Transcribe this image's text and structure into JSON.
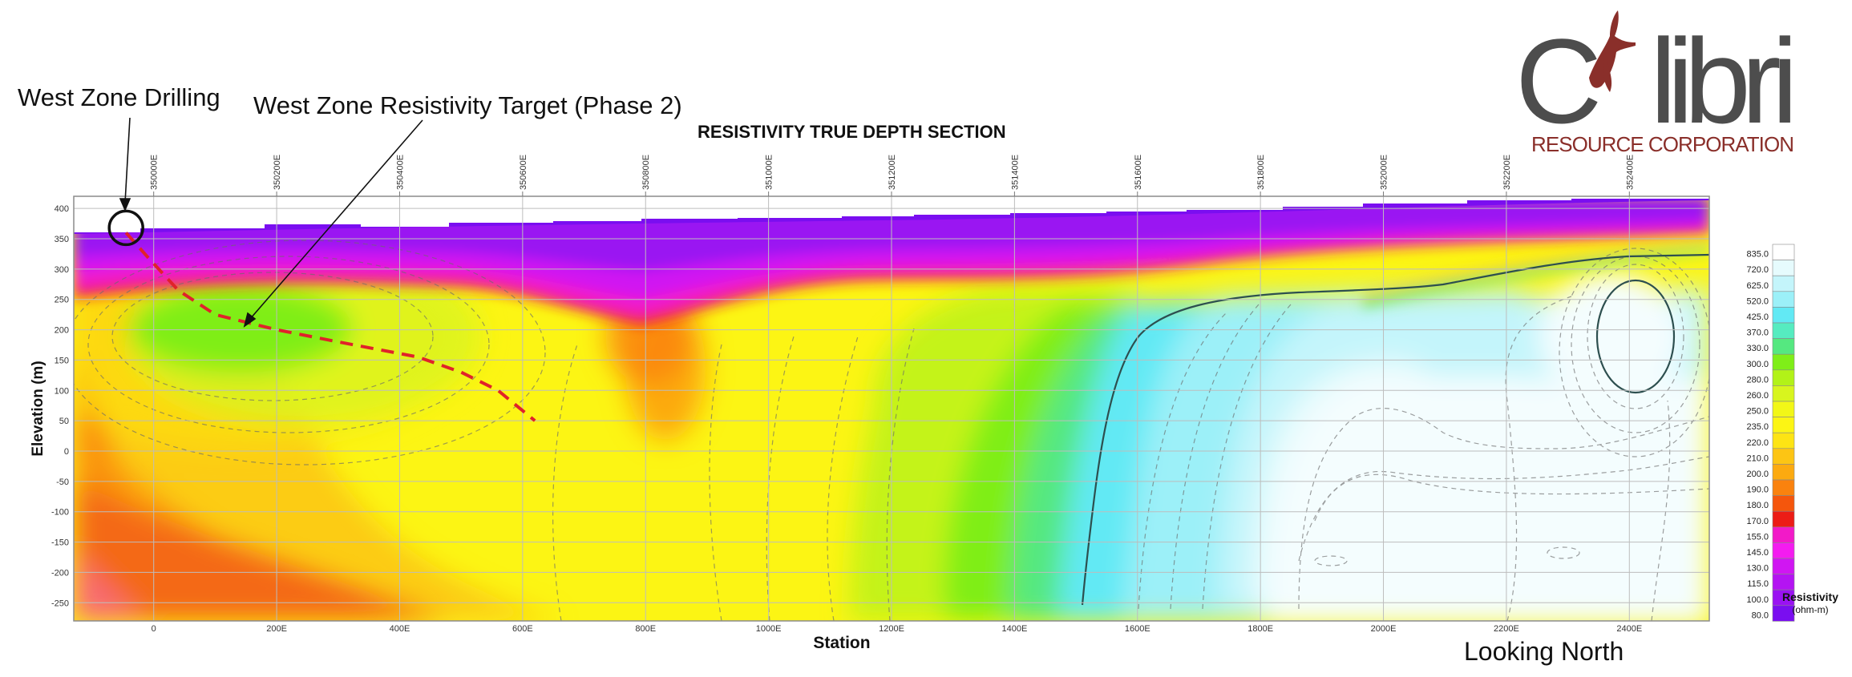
{
  "annotations": {
    "drilling": "West Zone Drilling",
    "target": "West Zone Resistivity Target (Phase 2)",
    "looking": "Looking North"
  },
  "logo": {
    "name": "Colibri",
    "tagline": "RESOURCE CORPORATION",
    "colors": {
      "text": "#4d4d4d",
      "accent": "#8a2f2a"
    }
  },
  "chart_data": {
    "type": "heatmap",
    "title": "RESISTIVITY TRUE DEPTH SECTION",
    "xlabel": "Station",
    "ylabel": "Elevation (m)",
    "xlim": [
      -130,
      2530
    ],
    "ylim": [
      -280,
      420
    ],
    "x_ticks": [
      "0",
      "200E",
      "400E",
      "600E",
      "800E",
      "1000E",
      "1200E",
      "1400E",
      "1600E",
      "1800E",
      "2000E",
      "2200E",
      "2400E"
    ],
    "x_tick_values": [
      0,
      200,
      400,
      600,
      800,
      1000,
      1200,
      1400,
      1600,
      1800,
      2000,
      2200,
      2400
    ],
    "top_ticks": [
      "350000E",
      "350200E",
      "350400E",
      "350600E",
      "350800E",
      "351000E",
      "351200E",
      "351400E",
      "351600E",
      "351800E",
      "352000E",
      "352200E",
      "352400E"
    ],
    "y_ticks": [
      400,
      350,
      300,
      250,
      200,
      150,
      100,
      50,
      0,
      -50,
      -100,
      -150,
      -200,
      -250
    ],
    "grid": true,
    "legend": {
      "title": "Resistivity",
      "units": "(ohm-m)",
      "position": "right",
      "entries": [
        {
          "value": "835.0",
          "color": "#ffffff"
        },
        {
          "value": "720.0",
          "color": "#e6fbfd"
        },
        {
          "value": "625.0",
          "color": "#c4f5fb"
        },
        {
          "value": "520.0",
          "color": "#9cf0f8"
        },
        {
          "value": "425.0",
          "color": "#62e9f4"
        },
        {
          "value": "370.0",
          "color": "#56ecc0"
        },
        {
          "value": "330.0",
          "color": "#55e880"
        },
        {
          "value": "300.0",
          "color": "#7fee18"
        },
        {
          "value": "280.0",
          "color": "#b2f218"
        },
        {
          "value": "260.0",
          "color": "#d8f51e"
        },
        {
          "value": "250.0",
          "color": "#f2f717"
        },
        {
          "value": "235.0",
          "color": "#fcf514"
        },
        {
          "value": "220.0",
          "color": "#fde414"
        },
        {
          "value": "210.0",
          "color": "#fdc514"
        },
        {
          "value": "200.0",
          "color": "#fcaa10"
        },
        {
          "value": "190.0",
          "color": "#fa820e"
        },
        {
          "value": "180.0",
          "color": "#f5560c"
        },
        {
          "value": "170.0",
          "color": "#ec1c16"
        },
        {
          "value": "155.0",
          "color": "#f21ac8"
        },
        {
          "value": "145.0",
          "color": "#f41cf0"
        },
        {
          "value": "130.0",
          "color": "#d016f2"
        },
        {
          "value": "115.0",
          "color": "#b414f2"
        },
        {
          "value": "100.0",
          "color": "#9a12f2"
        },
        {
          "value": "80.0",
          "color": "#7a0ef0"
        }
      ]
    },
    "markers": {
      "drill_collar": {
        "x": -45,
        "y": 360
      },
      "drill_trace": [
        [
          -45,
          360
        ],
        [
          -10,
          320
        ],
        [
          40,
          265
        ],
        [
          100,
          225
        ],
        [
          200,
          200
        ],
        [
          300,
          180
        ],
        [
          430,
          155
        ],
        [
          500,
          130
        ],
        [
          560,
          100
        ],
        [
          620,
          50
        ]
      ],
      "target_point": {
        "x": 150,
        "y": 205
      }
    }
  }
}
